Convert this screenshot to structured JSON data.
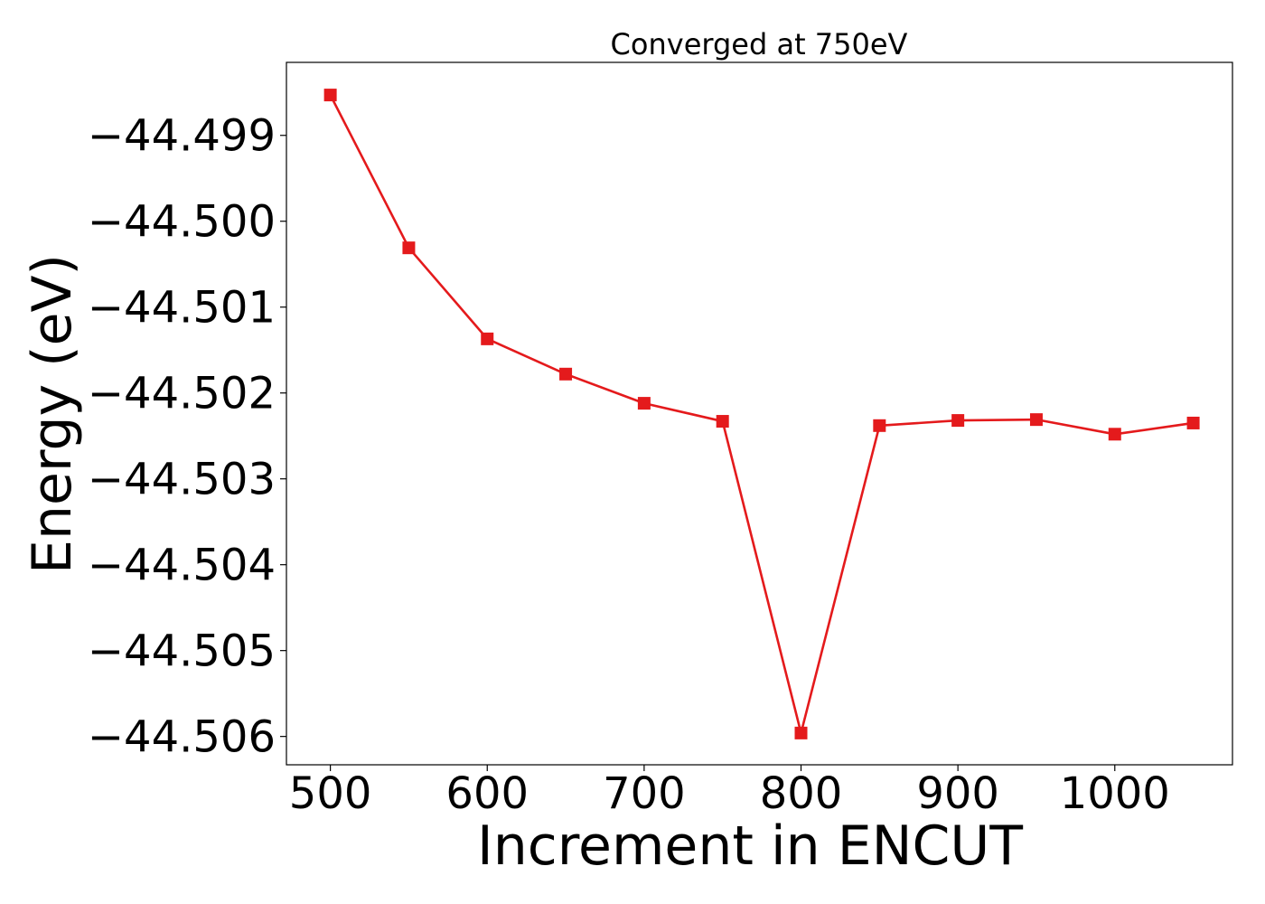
{
  "chart_data": {
    "type": "line",
    "title": "Converged at 750eV",
    "xlabel": "Increment in ENCUT",
    "ylabel": "Energy (eV)",
    "x": [
      500,
      550,
      600,
      650,
      700,
      750,
      800,
      850,
      900,
      950,
      1000,
      1050
    ],
    "series": [
      {
        "values": [
          -44.49853,
          -44.50031,
          -44.50137,
          -44.50178,
          -44.50212,
          -44.50233,
          -44.50596,
          -44.50238,
          -44.50232,
          -44.50231,
          -44.50248,
          -44.50235
        ],
        "color": "#e41a1c",
        "marker": "square"
      }
    ],
    "xlim": [
      472,
      1075
    ],
    "ylim": [
      -44.50633,
      -44.49815
    ],
    "xticks": [
      500,
      600,
      700,
      800,
      900,
      1000
    ],
    "xtick_labels": [
      "500",
      "600",
      "700",
      "800",
      "900",
      "1000"
    ],
    "yticks": [
      -44.499,
      -44.5,
      -44.501,
      -44.502,
      -44.503,
      -44.504,
      -44.505,
      -44.506
    ],
    "ytick_labels": [
      "−44.499",
      "−44.500",
      "−44.501",
      "−44.502",
      "−44.503",
      "−44.504",
      "−44.505",
      "−44.506"
    ],
    "grid": false,
    "legend": "none"
  }
}
